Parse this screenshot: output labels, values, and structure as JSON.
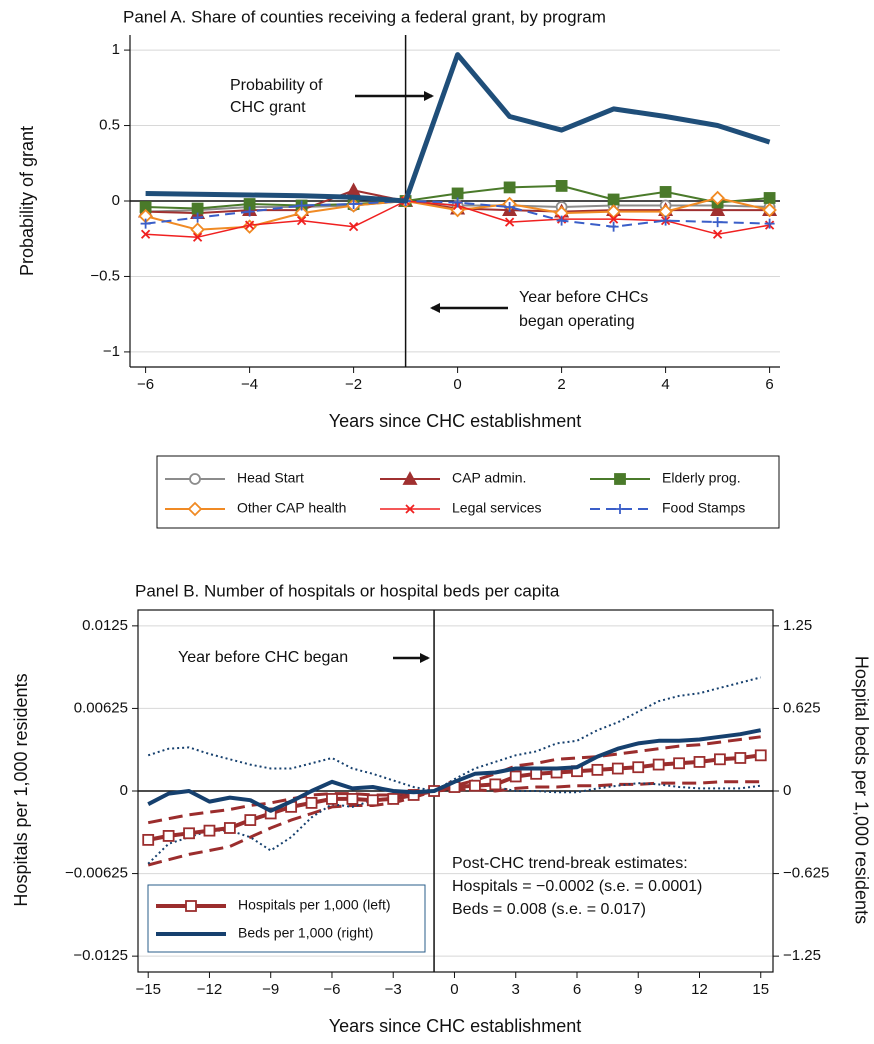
{
  "chart_data": [
    {
      "type": "line",
      "title": "Panel A. Share of counties receiving a federal grant, by program",
      "x_label": "Years since CHC establishment",
      "y_label": "Probability of grant",
      "x": [
        -6,
        -5,
        -4,
        -3,
        -2,
        -1,
        0,
        1,
        2,
        3,
        4,
        5,
        6
      ],
      "xlim": [
        -6.3,
        6.2
      ],
      "xticks": [
        {
          "value": -6,
          "label": "−6"
        },
        {
          "value": -4,
          "label": "−4"
        },
        {
          "value": -2,
          "label": "−2"
        },
        0,
        2,
        4,
        6
      ],
      "ylim": [
        -1.1,
        1.1
      ],
      "yticks": [
        {
          "value": -1,
          "label": "−1"
        },
        {
          "value": -0.5,
          "label": "−0.5"
        },
        0,
        0.5,
        1
      ],
      "grid": true,
      "reference_line_x": -1,
      "annotations": [
        [
          "Probability of",
          "CHC grant"
        ],
        [
          "Year before CHCs",
          "began operating"
        ]
      ],
      "series": [
        {
          "name": "Head Start",
          "color": "#8c8c8c",
          "marker": "circle",
          "open": true,
          "width": 2,
          "values": [
            -0.07,
            -0.06,
            -0.04,
            -0.04,
            -0.03,
            0,
            -0.03,
            -0.03,
            -0.04,
            -0.03,
            -0.03,
            -0.03,
            -0.04
          ]
        },
        {
          "name": "CAP admin.",
          "color": "#a03030",
          "marker": "triangle",
          "open": false,
          "width": 2,
          "values": [
            -0.07,
            -0.08,
            -0.06,
            -0.06,
            0.07,
            0,
            -0.05,
            -0.06,
            -0.07,
            -0.06,
            -0.06,
            -0.06,
            -0.06
          ]
        },
        {
          "name": "Elderly prog.",
          "color": "#4a7a2a",
          "marker": "square",
          "open": false,
          "width": 2,
          "values": [
            -0.04,
            -0.05,
            -0.02,
            -0.03,
            -0.02,
            0,
            0.05,
            0.09,
            0.1,
            0.01,
            0.06,
            -0.01,
            0.02
          ]
        },
        {
          "name": "Other CAP health",
          "color": "#f08a24",
          "marker": "diamond",
          "open": true,
          "width": 2,
          "values": [
            -0.1,
            -0.19,
            -0.17,
            -0.08,
            -0.03,
            0,
            -0.06,
            -0.02,
            -0.08,
            -0.07,
            -0.07,
            0.02,
            -0.06
          ]
        },
        {
          "name": "Legal services",
          "color": "#f02020",
          "marker": "x",
          "open": false,
          "width": 1.5,
          "values": [
            -0.22,
            -0.24,
            -0.16,
            -0.13,
            -0.17,
            0,
            -0.03,
            -0.14,
            -0.12,
            -0.12,
            -0.13,
            -0.22,
            -0.16
          ]
        },
        {
          "name": "Food Stamps",
          "color": "#3a5ec8",
          "marker": "plus",
          "open": false,
          "width": 2,
          "dash": "10 6",
          "values": [
            -0.15,
            -0.11,
            -0.07,
            -0.03,
            -0.02,
            0,
            -0.01,
            -0.04,
            -0.13,
            -0.17,
            -0.13,
            -0.14,
            -0.15
          ]
        },
        {
          "color": "#1f4e79",
          "marker": "none",
          "width": 5,
          "values": [
            0.05,
            0.045,
            0.04,
            0.035,
            0.025,
            0,
            0.97,
            0.56,
            0.47,
            0.61,
            0.56,
            0.5,
            0.39
          ]
        }
      ]
    },
    {
      "type": "line",
      "title": "Panel B. Number of hospitals or hospital beds per capita",
      "x_label": "Years since CHC establishment",
      "y_label": "Hospitals per 1,000 residents",
      "y2_label": "Hospital beds per 1,000 residents",
      "x": [
        -15,
        -14,
        -13,
        -12,
        -11,
        -10,
        -9,
        -8,
        -7,
        -6,
        -5,
        -4,
        -3,
        -2,
        -1,
        0,
        1,
        2,
        3,
        4,
        5,
        6,
        7,
        8,
        9,
        10,
        11,
        12,
        13,
        14,
        15
      ],
      "xlim": [
        -15.5,
        15.6
      ],
      "xticks": [
        {
          "value": -15,
          "label": "−15"
        },
        {
          "value": -12,
          "label": "−12"
        },
        {
          "value": -9,
          "label": "−9"
        },
        {
          "value": -6,
          "label": "−6"
        },
        {
          "value": -3,
          "label": "−3"
        },
        0,
        3,
        6,
        9,
        12,
        15
      ],
      "ylim": [
        -0.0137,
        0.0137
      ],
      "yticks": [
        {
          "value": -0.0125,
          "label": "−0.0125"
        },
        {
          "value": -0.00625,
          "label": "−0.00625"
        },
        0,
        0.00625,
        0.0125
      ],
      "y2lim": [
        -1.37,
        1.37
      ],
      "y2ticks": [
        {
          "value": -1.25,
          "label": "−1.25"
        },
        {
          "value": -0.625,
          "label": "−0.625"
        },
        0,
        0.625,
        1.25
      ],
      "grid": true,
      "reference_line_x": -1,
      "annotations": [
        [
          "Year before CHC began"
        ],
        [
          "Post-CHC trend-break estimates:",
          "Hospitals = −0.0002 (s.e. = 0.0001)",
          "Beds = 0.008 (s.e. = 0.017)"
        ]
      ],
      "series": [
        {
          "name": "Hospitals per 1,000 (left)",
          "color": "#9b2d2d",
          "marker": "square",
          "open": true,
          "width": 4,
          "values": [
            -0.0037,
            -0.0034,
            -0.0032,
            -0.003,
            -0.0028,
            -0.0022,
            -0.0017,
            -0.0012,
            -0.0009,
            -0.0006,
            -0.0006,
            -0.0007,
            -0.0006,
            -0.0003,
            0,
            0.0003,
            0.0004,
            0.0005,
            0.0011,
            0.0013,
            0.0014,
            0.0015,
            0.0016,
            0.0017,
            0.0018,
            0.002,
            0.0021,
            0.0022,
            0.0024,
            0.0025,
            0.0027
          ],
          "ci_dash": "14 7",
          "ci_width": 3,
          "upper": [
            -0.0024,
            -0.0021,
            -0.0018,
            -0.0016,
            -0.0014,
            -0.0011,
            -0.0009,
            -0.0006,
            -0.0003,
            -0.0002,
            -0.0002,
            -0.0003,
            -0.0003,
            -0.0002,
            0,
            0.0004,
            0.0008,
            0.0013,
            0.0019,
            0.0021,
            0.0024,
            0.0025,
            0.0026,
            0.0028,
            0.003,
            0.0032,
            0.0034,
            0.0035,
            0.0037,
            0.0039,
            0.0041
          ],
          "lower": [
            -0.0056,
            -0.0052,
            -0.0048,
            -0.0045,
            -0.0042,
            -0.0035,
            -0.0028,
            -0.0022,
            -0.0017,
            -0.0012,
            -0.0011,
            -0.0011,
            -0.0009,
            -0.0005,
            0,
            0.0001,
            0.0001,
            0,
            0.0002,
            0.0003,
            0.0003,
            0.0004,
            0.0004,
            0.0005,
            0.0005,
            0.0006,
            0.0006,
            0.0006,
            0.0007,
            0.0007,
            0.0007
          ]
        },
        {
          "name": "Beds per 1,000 (right)",
          "color": "#16406e",
          "marker": "none",
          "width": 4,
          "axis": "y2",
          "values": [
            -0.1,
            -0.02,
            0,
            -0.08,
            -0.05,
            -0.07,
            -0.15,
            -0.08,
            0,
            0.07,
            0.02,
            0.03,
            0,
            -0.01,
            0,
            0.07,
            0.13,
            0.14,
            0.17,
            0.17,
            0.17,
            0.18,
            0.26,
            0.32,
            0.36,
            0.38,
            0.38,
            0.39,
            0.41,
            0.43,
            0.46
          ],
          "ci_dash": "2 3",
          "ci_width": 2,
          "upper": [
            0.27,
            0.32,
            0.33,
            0.28,
            0.24,
            0.2,
            0.17,
            0.17,
            0.21,
            0.25,
            0.17,
            0.13,
            0.08,
            0.03,
            0,
            0.09,
            0.17,
            0.22,
            0.27,
            0.3,
            0.36,
            0.38,
            0.46,
            0.52,
            0.6,
            0.68,
            0.72,
            0.74,
            0.78,
            0.82,
            0.86
          ],
          "lower": [
            -0.55,
            -0.4,
            -0.35,
            -0.3,
            -0.3,
            -0.35,
            -0.45,
            -0.35,
            -0.2,
            -0.1,
            -0.12,
            -0.07,
            -0.05,
            -0.02,
            0,
            0.02,
            0.05,
            0.03,
            0,
            0,
            -0.01,
            -0.01,
            0.02,
            0.04,
            0.06,
            0.05,
            0.03,
            0.02,
            0.02,
            0.02,
            0.04
          ]
        }
      ]
    }
  ]
}
